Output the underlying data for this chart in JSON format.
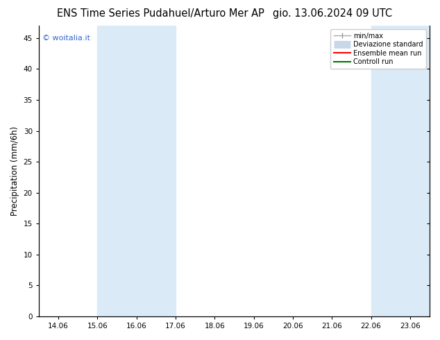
{
  "title_left": "ENS Time Series Pudahuel/Arturo Mer AP",
  "title_right": "gio. 13.06.2024 09 UTC",
  "ylabel": "Precipitation (mm/6h)",
  "watermark": "© woitalia.it",
  "watermark_color": "#3366cc",
  "x_tick_labels": [
    "14.06",
    "15.06",
    "16.06",
    "17.06",
    "18.06",
    "19.06",
    "20.06",
    "21.06",
    "22.06",
    "23.06"
  ],
  "x_tick_positions": [
    0,
    1,
    2,
    3,
    4,
    5,
    6,
    7,
    8,
    9
  ],
  "xlim": [
    -0.5,
    9.5
  ],
  "ylim": [
    0,
    47
  ],
  "yticks": [
    0,
    5,
    10,
    15,
    20,
    25,
    30,
    35,
    40,
    45
  ],
  "background_color": "#ffffff",
  "shaded_regions": [
    {
      "x_start": 1,
      "x_end": 3,
      "color": "#daeaf7"
    },
    {
      "x_start": 8,
      "x_end": 9.5,
      "color": "#daeaf7"
    }
  ],
  "legend_entries": [
    {
      "label": "min/max",
      "color": "#aaaaaa",
      "lw": 1.0
    },
    {
      "label": "Deviazione standard",
      "color": "#c8d8e8",
      "lw": 6
    },
    {
      "label": "Ensemble mean run",
      "color": "#ff0000",
      "lw": 1.5
    },
    {
      "label": "Controll run",
      "color": "#007700",
      "lw": 1.5
    }
  ],
  "title_fontsize": 10.5,
  "axis_fontsize": 8.5,
  "tick_fontsize": 7.5,
  "legend_fontsize": 7.0
}
